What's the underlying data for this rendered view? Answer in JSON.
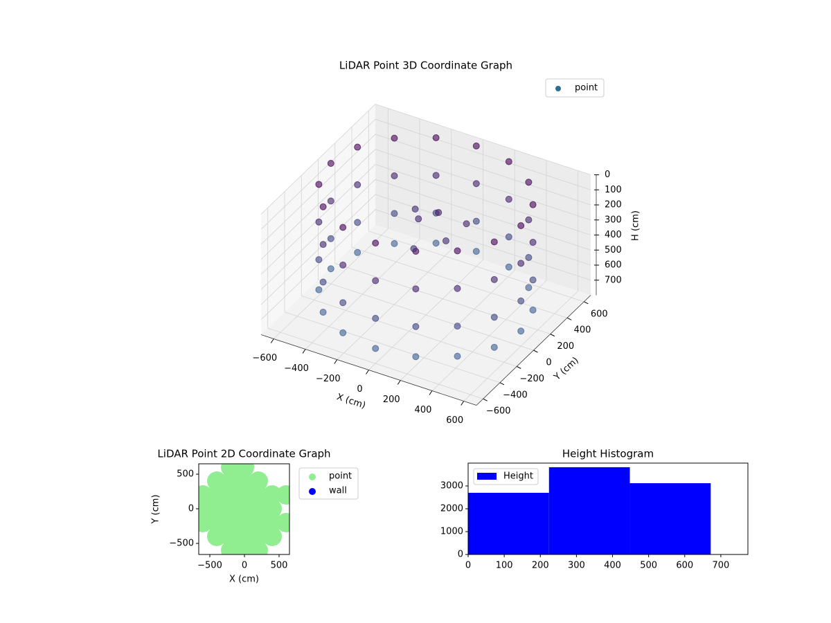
{
  "chart_data": [
    {
      "type": "scatter3d",
      "title": "LiDAR Point 3D Coordinate Graph",
      "xlabel": "X (cm)",
      "ylabel": "Y (cm)",
      "zlabel": "H (cm)",
      "series": [
        {
          "name": "point",
          "color": "#2c6e8f",
          "x": [
            600,
            554,
            424,
            230,
            0,
            -230,
            -424,
            -554,
            -600,
            -554,
            -424,
            -230,
            0,
            230,
            424,
            554,
            600,
            554,
            424,
            230,
            0,
            -230,
            -424,
            -554,
            -600,
            -554,
            -424,
            -230,
            0,
            230,
            424,
            554,
            600,
            554,
            424,
            230,
            0,
            -230,
            -424,
            -554,
            -600,
            -554,
            -424,
            -230,
            0,
            230,
            424,
            554,
            600,
            554,
            424,
            230,
            0,
            -230,
            -424,
            -554,
            -600,
            -554,
            -424,
            -230,
            0,
            230,
            424,
            554,
            -100,
            0,
            100,
            -50,
            150,
            -200
          ],
          "y": [
            0,
            230,
            424,
            554,
            600,
            554,
            424,
            230,
            0,
            -230,
            -424,
            -554,
            -600,
            -554,
            -424,
            -230,
            0,
            230,
            424,
            554,
            600,
            554,
            424,
            230,
            0,
            -230,
            -424,
            -554,
            -600,
            -554,
            -424,
            -230,
            0,
            230,
            424,
            554,
            600,
            554,
            424,
            230,
            0,
            -230,
            -424,
            -554,
            -600,
            -554,
            -424,
            -230,
            0,
            230,
            424,
            554,
            600,
            554,
            424,
            230,
            0,
            -230,
            -424,
            -554,
            -600,
            -554,
            -424,
            -230,
            100,
            150,
            50,
            -50,
            200,
            250
          ],
          "z": [
            0,
            0,
            0,
            0,
            0,
            0,
            0,
            0,
            0,
            0,
            0,
            0,
            0,
            0,
            0,
            0,
            250,
            250,
            250,
            250,
            250,
            250,
            250,
            250,
            250,
            250,
            250,
            250,
            250,
            250,
            250,
            250,
            500,
            500,
            500,
            500,
            500,
            500,
            500,
            500,
            500,
            500,
            500,
            500,
            500,
            500,
            500,
            500,
            700,
            700,
            700,
            700,
            700,
            700,
            700,
            700,
            700,
            700,
            700,
            700,
            700,
            700,
            700,
            700,
            250,
            200,
            300,
            350,
            250,
            300
          ]
        }
      ],
      "cmap": [
        "#440154",
        "#3b6a9a"
      ],
      "xlim": [
        -680,
        680
      ],
      "ylim": [
        -680,
        680
      ],
      "zlim": [
        0,
        800
      ],
      "invert_z": true,
      "xticks": [
        {
          "value": -600,
          "label": "−600"
        },
        {
          "value": -400,
          "label": "−400"
        },
        {
          "value": -200,
          "label": "−200"
        },
        0,
        200,
        400,
        600
      ],
      "yticks": [
        {
          "value": -600,
          "label": "−600"
        },
        {
          "value": -400,
          "label": "−400"
        },
        {
          "value": -200,
          "label": "−200"
        },
        0,
        200,
        400,
        600
      ],
      "zticks": [
        0,
        100,
        200,
        300,
        400,
        500,
        600,
        700
      ],
      "grid": true,
      "legend": "upper right"
    },
    {
      "type": "scatter",
      "title": "LiDAR Point 2D Coordinate Graph",
      "xlabel": "X (cm)",
      "ylabel": "Y (cm)",
      "series": [
        {
          "name": "point",
          "color": "#90ee90",
          "x": [
            -200,
            0,
            -400,
            -200,
            0,
            200,
            -600,
            -400,
            -200,
            0,
            200,
            400,
            600,
            -600,
            -400,
            -200,
            0,
            200,
            400,
            -600,
            -400,
            -200,
            0,
            200,
            400,
            600,
            -400,
            -200,
            0,
            200,
            400,
            -200,
            0,
            200
          ],
          "y": [
            600,
            600,
            400,
            400,
            400,
            400,
            200,
            200,
            200,
            200,
            200,
            200,
            200,
            0,
            0,
            0,
            0,
            0,
            0,
            -200,
            -200,
            -200,
            -200,
            -200,
            -200,
            -200,
            -400,
            -400,
            -400,
            -400,
            -400,
            -600,
            -600,
            -600
          ]
        },
        {
          "name": "wall",
          "color": "#0000ff",
          "x": [],
          "y": []
        }
      ],
      "xlim": [
        -660,
        650
      ],
      "ylim": [
        -660,
        650
      ],
      "xticks": [
        {
          "value": -500,
          "label": "−500"
        },
        0,
        500
      ],
      "yticks": [
        {
          "value": -500,
          "label": "−500"
        },
        0,
        500
      ],
      "legend": "outside right"
    },
    {
      "type": "histogram",
      "title": "Height Histogram",
      "bins": [
        0,
        224,
        448,
        672
      ],
      "series": [
        {
          "name": "Height",
          "color": "#0000ff",
          "values": [
            2700,
            3820,
            3120
          ]
        }
      ],
      "xlim": [
        0,
        775
      ],
      "ylim": [
        0,
        4000
      ],
      "xticks": [
        0,
        100,
        200,
        300,
        400,
        500,
        600,
        700
      ],
      "yticks": [
        0,
        1000,
        2000,
        3000
      ],
      "legend": "upper left"
    }
  ]
}
